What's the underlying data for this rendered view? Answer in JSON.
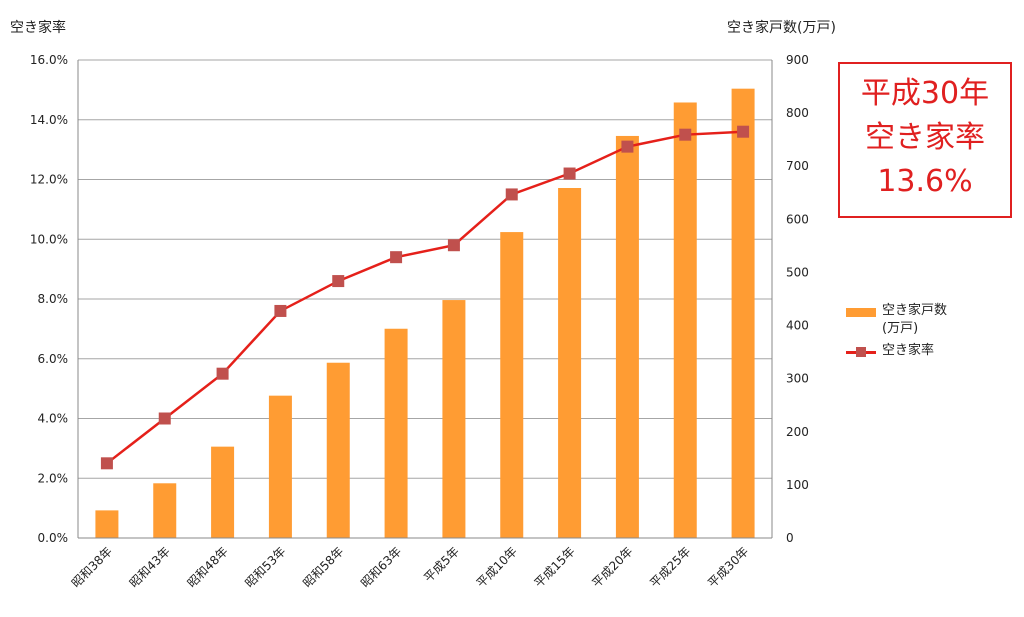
{
  "chart_data": {
    "type": "bar+line",
    "categories": [
      "昭和38年",
      "昭和43年",
      "昭和48年",
      "昭和53年",
      "昭和58年",
      "昭和63年",
      "平成5年",
      "平成10年",
      "平成15年",
      "平成20年",
      "平成25年",
      "平成30年"
    ],
    "series": [
      {
        "name": "空き家戸数(万戸)",
        "type": "bar",
        "axis": "right",
        "values": [
          52,
          103,
          172,
          268,
          330,
          394,
          448,
          576,
          659,
          757,
          820,
          846
        ]
      },
      {
        "name": "空き家率",
        "type": "line",
        "axis": "left",
        "values": [
          2.5,
          4.0,
          5.5,
          7.6,
          8.6,
          9.4,
          9.8,
          11.5,
          12.2,
          13.1,
          13.5,
          13.6
        ]
      }
    ],
    "left_axis": {
      "title": "空き家率",
      "ylim": [
        0,
        16
      ],
      "ticks": [
        "0.0%",
        "2.0%",
        "4.0%",
        "6.0%",
        "8.0%",
        "10.0%",
        "12.0%",
        "14.0%",
        "16.0%"
      ]
    },
    "right_axis": {
      "title": "空き家戸数(万戸)",
      "ylim": [
        0,
        900
      ],
      "ticks": [
        "0",
        "100",
        "200",
        "300",
        "400",
        "500",
        "600",
        "700",
        "800",
        "900"
      ]
    },
    "grid": true,
    "legend": {
      "placement": "right",
      "entries": [
        {
          "label": "空き家戸数(万戸)"
        },
        {
          "label": "空き家率"
        }
      ]
    },
    "annotation": {
      "lines": [
        "平成30年",
        "空き家率",
        "13.6%"
      ]
    }
  },
  "colors": {
    "bar": "#ff9c33",
    "line": "#e5201a",
    "marker": "#c0504d",
    "grid": "#a6a6a6",
    "callout": "#e02020"
  }
}
